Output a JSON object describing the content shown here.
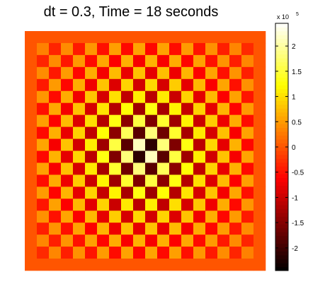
{
  "chart_data": {
    "type": "heatmap",
    "title": "dt = 0.3, Time = 18 seconds",
    "colormap": "hot",
    "grid_size": 20,
    "field": {
      "kind": "radial standing wave on checkerboard",
      "center_row": 9.5,
      "center_col": 9.5,
      "edge_value": 0,
      "amplitude_at_center": 240000.0,
      "amplitude_near_edge": 30000.0
    },
    "colorbar": {
      "range": [
        -245000.0,
        245000.0
      ],
      "tick_values": [
        -200000.0,
        -150000.0,
        -100000.0,
        -50000.0,
        0,
        50000.0,
        100000.0,
        150000.0,
        200000.0
      ],
      "tick_labels": [
        "-2",
        "-1.5",
        "-1",
        "-0.5",
        "0",
        "0.5",
        "1",
        "1.5",
        "2"
      ],
      "exponent_label": "x 10",
      "exponent": "5"
    },
    "colors": {
      "min": "#000000",
      "mid": "#ff6a00",
      "max": "#ffffff"
    }
  }
}
